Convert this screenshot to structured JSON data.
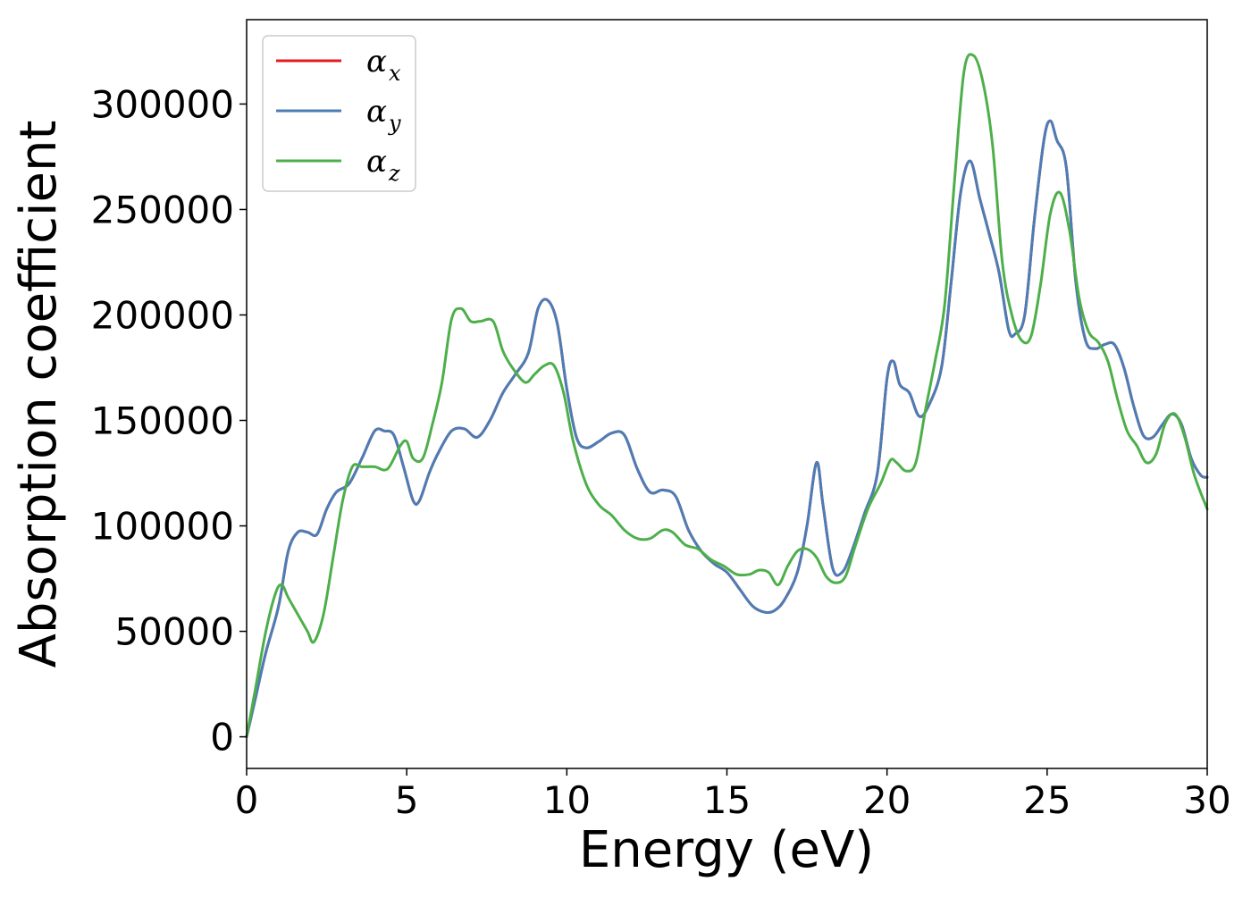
{
  "chart_data": {
    "type": "line",
    "title": "",
    "xlabel": "Energy (eV)",
    "ylabel": "Absorption coefficient",
    "xlim": [
      0,
      30
    ],
    "ylim": [
      -15000,
      340000
    ],
    "x_ticks": [
      0,
      5,
      10,
      15,
      20,
      25,
      30
    ],
    "y_ticks": [
      0,
      50000,
      100000,
      150000,
      200000,
      250000,
      300000
    ],
    "grid": false,
    "legend_position": "upper-left",
    "series": [
      {
        "name": "α_x",
        "label_main": "α",
        "label_sub": "x",
        "color": "#e41a1c",
        "x": [
          0,
          0.3,
          0.6,
          1.0,
          1.3,
          1.6,
          1.9,
          2.2,
          2.5,
          2.8,
          3.2,
          3.6,
          4.0,
          4.3,
          4.6,
          4.9,
          5.2,
          5.4,
          5.7,
          6.0,
          6.4,
          6.8,
          7.2,
          7.6,
          8.0,
          8.4,
          8.8,
          9.1,
          9.4,
          9.7,
          10.0,
          10.3,
          10.6,
          11.0,
          11.4,
          11.8,
          12.2,
          12.6,
          13.0,
          13.4,
          13.8,
          14.2,
          14.6,
          15.0,
          15.4,
          15.8,
          16.2,
          16.5,
          16.8,
          17.2,
          17.5,
          17.8,
          18.0,
          18.3,
          18.6,
          18.9,
          19.3,
          19.7,
          20.0,
          20.2,
          20.4,
          20.7,
          21.0,
          21.3,
          21.7,
          22.0,
          22.3,
          22.6,
          22.9,
          23.2,
          23.5,
          23.8,
          24.0,
          24.3,
          24.6,
          24.9,
          25.1,
          25.3,
          25.6,
          25.9,
          26.2,
          26.5,
          26.8,
          27.1,
          27.4,
          27.7,
          28.0,
          28.3,
          28.6,
          28.9,
          29.2,
          29.5,
          29.8,
          30.0
        ],
        "values": [
          0,
          20000,
          40000,
          62000,
          88000,
          97000,
          97000,
          96000,
          108000,
          116000,
          120000,
          132000,
          145000,
          145000,
          143000,
          128000,
          112000,
          112000,
          125000,
          135000,
          145000,
          146000,
          142000,
          150000,
          163000,
          172000,
          182000,
          203000,
          207000,
          196000,
          165000,
          142000,
          137000,
          140000,
          144000,
          143000,
          127000,
          116000,
          117000,
          114000,
          98000,
          88000,
          82000,
          78000,
          70000,
          62000,
          59000,
          60000,
          65000,
          78000,
          100000,
          130000,
          110000,
          80000,
          78000,
          88000,
          106000,
          125000,
          170000,
          178000,
          167000,
          163000,
          152000,
          157000,
          175000,
          215000,
          258000,
          273000,
          255000,
          238000,
          220000,
          193000,
          191000,
          200000,
          245000,
          283000,
          292000,
          283000,
          270000,
          215000,
          188000,
          184000,
          186000,
          186000,
          175000,
          157000,
          143000,
          142000,
          148000,
          153000,
          148000,
          132000,
          124000,
          123000
        ]
      },
      {
        "name": "α_y",
        "label_main": "α",
        "label_sub": "y",
        "color": "#4b7db6",
        "x": [
          0,
          0.3,
          0.6,
          1.0,
          1.3,
          1.6,
          1.9,
          2.2,
          2.5,
          2.8,
          3.2,
          3.6,
          4.0,
          4.3,
          4.6,
          4.9,
          5.2,
          5.4,
          5.7,
          6.0,
          6.4,
          6.8,
          7.2,
          7.6,
          8.0,
          8.4,
          8.8,
          9.1,
          9.4,
          9.7,
          10.0,
          10.3,
          10.6,
          11.0,
          11.4,
          11.8,
          12.2,
          12.6,
          13.0,
          13.4,
          13.8,
          14.2,
          14.6,
          15.0,
          15.4,
          15.8,
          16.2,
          16.5,
          16.8,
          17.2,
          17.5,
          17.8,
          18.0,
          18.3,
          18.6,
          18.9,
          19.3,
          19.7,
          20.0,
          20.2,
          20.4,
          20.7,
          21.0,
          21.3,
          21.7,
          22.0,
          22.3,
          22.6,
          22.9,
          23.2,
          23.5,
          23.8,
          24.0,
          24.3,
          24.6,
          24.9,
          25.1,
          25.3,
          25.6,
          25.9,
          26.2,
          26.5,
          26.8,
          27.1,
          27.4,
          27.7,
          28.0,
          28.3,
          28.6,
          28.9,
          29.2,
          29.5,
          29.8,
          30.0
        ],
        "values": [
          0,
          20000,
          40000,
          62000,
          88000,
          97000,
          97000,
          96000,
          108000,
          116000,
          120000,
          132000,
          145000,
          145000,
          143000,
          128000,
          112000,
          112000,
          125000,
          135000,
          145000,
          146000,
          142000,
          150000,
          163000,
          172000,
          182000,
          203000,
          207000,
          196000,
          165000,
          142000,
          137000,
          140000,
          144000,
          143000,
          127000,
          116000,
          117000,
          114000,
          98000,
          88000,
          82000,
          78000,
          70000,
          62000,
          59000,
          60000,
          65000,
          78000,
          100000,
          130000,
          110000,
          80000,
          78000,
          88000,
          106000,
          125000,
          170000,
          178000,
          167000,
          163000,
          152000,
          157000,
          175000,
          215000,
          258000,
          273000,
          255000,
          238000,
          220000,
          193000,
          191000,
          200000,
          245000,
          283000,
          292000,
          283000,
          270000,
          215000,
          188000,
          184000,
          186000,
          186000,
          175000,
          157000,
          143000,
          142000,
          148000,
          153000,
          148000,
          132000,
          124000,
          123000
        ]
      },
      {
        "name": "α_z",
        "label_main": "α",
        "label_sub": "z",
        "color": "#4daf4a",
        "x": [
          0,
          0.3,
          0.6,
          0.9,
          1.1,
          1.3,
          1.6,
          1.9,
          2.1,
          2.4,
          2.7,
          3.0,
          3.3,
          3.6,
          4.0,
          4.4,
          4.8,
          5.0,
          5.2,
          5.5,
          5.8,
          6.1,
          6.4,
          6.7,
          7.0,
          7.3,
          7.7,
          8.0,
          8.3,
          8.7,
          9.0,
          9.3,
          9.6,
          9.9,
          10.2,
          10.6,
          11.0,
          11.4,
          11.8,
          12.2,
          12.6,
          13.0,
          13.3,
          13.7,
          14.1,
          14.5,
          14.9,
          15.3,
          15.7,
          16.0,
          16.3,
          16.6,
          16.9,
          17.2,
          17.5,
          17.8,
          18.1,
          18.4,
          18.7,
          19.0,
          19.4,
          19.8,
          20.1,
          20.3,
          20.6,
          20.9,
          21.2,
          21.5,
          21.8,
          22.1,
          22.4,
          22.7,
          23.0,
          23.3,
          23.6,
          23.9,
          24.2,
          24.5,
          24.8,
          25.1,
          25.4,
          25.7,
          26.0,
          26.3,
          26.6,
          26.9,
          27.2,
          27.5,
          27.8,
          28.1,
          28.4,
          28.7,
          29.0,
          29.3,
          29.6,
          30.0
        ],
        "values": [
          0,
          25000,
          50000,
          68000,
          72000,
          66000,
          58000,
          50000,
          45000,
          58000,
          85000,
          112000,
          128000,
          128000,
          128000,
          127000,
          138000,
          140000,
          132000,
          132000,
          148000,
          168000,
          198000,
          203000,
          197000,
          197000,
          197000,
          183000,
          175000,
          168000,
          172000,
          176000,
          176000,
          163000,
          140000,
          120000,
          110000,
          105000,
          98000,
          94000,
          94000,
          98000,
          97000,
          91000,
          89000,
          84000,
          81000,
          77000,
          77000,
          79000,
          78000,
          72000,
          81000,
          88000,
          89000,
          85000,
          76000,
          73000,
          76000,
          90000,
          108000,
          120000,
          131000,
          130000,
          126000,
          130000,
          155000,
          178000,
          205000,
          262000,
          315000,
          323000,
          310000,
          280000,
          225000,
          200000,
          188000,
          190000,
          215000,
          248000,
          258000,
          240000,
          208000,
          192000,
          187000,
          178000,
          160000,
          145000,
          138000,
          130000,
          134000,
          149000,
          153000,
          142000,
          124000,
          108000
        ]
      }
    ]
  }
}
